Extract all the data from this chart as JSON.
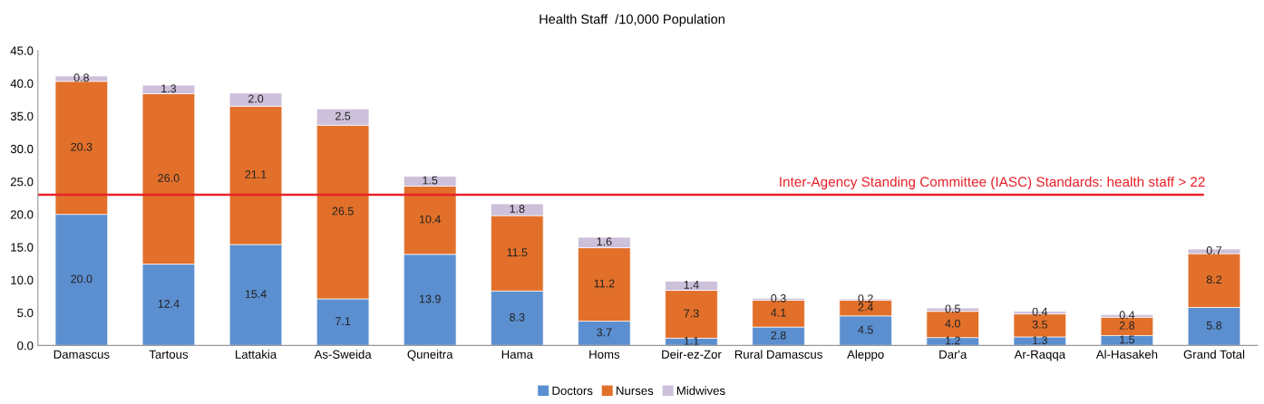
{
  "chart_data": {
    "type": "bar",
    "title": "Health Staff  /10,000 Population",
    "stacked": true,
    "categories": [
      "Damascus",
      "Tartous",
      "Lattakia",
      "As-Sweida",
      "Quneitra",
      "Hama",
      "Homs",
      "Deir-ez-Zor",
      "Rural Damascus",
      "Aleppo",
      "Dar'a",
      "Ar-Raqqa",
      "Al-Hasakeh",
      "Grand Total"
    ],
    "series": [
      {
        "name": "Doctors",
        "color": "#5b8fd0",
        "values": [
          20.0,
          12.4,
          15.4,
          7.1,
          13.9,
          8.3,
          3.7,
          1.1,
          2.8,
          4.5,
          1.2,
          1.3,
          1.5,
          5.8
        ],
        "value_labels": [
          "20.0",
          "12.4",
          "15.4",
          "7.1",
          "13.9",
          "8.3",
          "3.7",
          "1.1",
          "2.8",
          "4.5",
          "1.2",
          "1.3",
          "1.5",
          "5.8"
        ]
      },
      {
        "name": "Nurses",
        "color": "#e2702a",
        "values": [
          20.3,
          26.0,
          21.1,
          26.5,
          10.4,
          11.5,
          11.2,
          7.3,
          4.1,
          2.4,
          4.0,
          3.5,
          2.8,
          8.2
        ],
        "value_labels": [
          "20.3",
          "26.0",
          "21.1",
          "26.5",
          "10.4",
          "11.5",
          "11.2",
          "7.3",
          "4.1",
          "2.4",
          "4.0",
          "3.5",
          "2.8",
          "8.2"
        ]
      },
      {
        "name": "Midwives",
        "color": "#ccc0da",
        "values": [
          0.8,
          1.3,
          2.0,
          2.5,
          1.5,
          1.8,
          1.6,
          1.4,
          0.3,
          0.2,
          0.5,
          0.4,
          0.4,
          0.7
        ],
        "value_labels": [
          "0.8",
          "1.3",
          "2.0",
          "2.5",
          "1.5",
          "1.8",
          "1.6",
          "1.4",
          "0.3",
          "0.2",
          "0.5",
          "0.4",
          "0.4",
          "0.7"
        ]
      }
    ],
    "ylim": [
      0,
      45
    ],
    "yticks": [
      {
        "value": 0,
        "label": "0.0"
      },
      {
        "value": 5,
        "label": "5.0"
      },
      {
        "value": 10,
        "label": "10.0"
      },
      {
        "value": 15,
        "label": "15.0"
      },
      {
        "value": 20,
        "label": "20.0"
      },
      {
        "value": 25,
        "label": "25.0"
      },
      {
        "value": 30,
        "label": "30.0"
      },
      {
        "value": 35,
        "label": "35.0"
      },
      {
        "value": 40,
        "label": "40.0"
      },
      {
        "value": 45,
        "label": "45.0"
      }
    ],
    "ref_lines": [
      {
        "axis": "y",
        "value": 23,
        "label": "Inter-Agency Standing Committee (IASC) Standards: health staff > 22",
        "color": "#e8202a"
      }
    ],
    "grid": false,
    "legend": "bottom"
  }
}
